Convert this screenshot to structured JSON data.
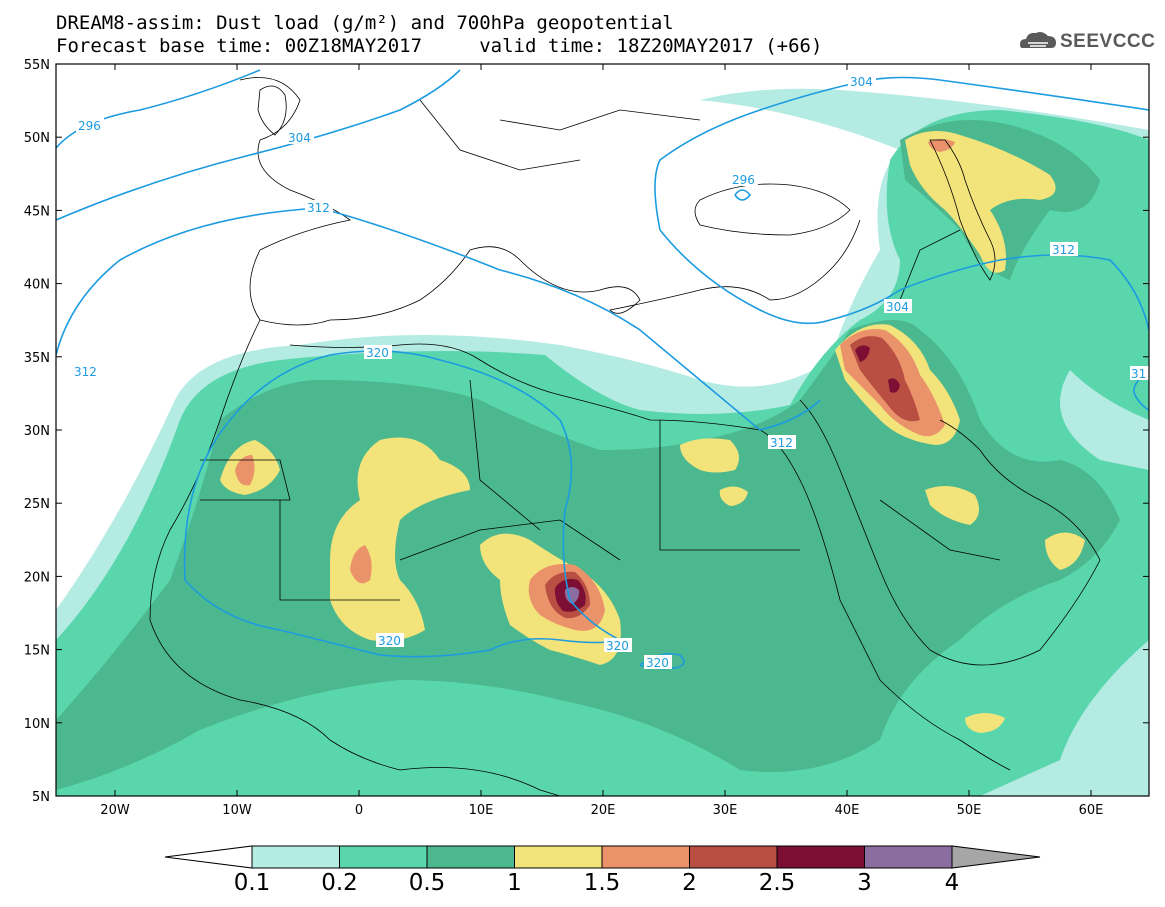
{
  "title_line1": "DREAM8-assim: Dust load (g/m²) and 700hPa geopotential",
  "title_line2": "Forecast base time: 00Z18MAY2017     valid time: 18Z20MAY2017 (+66)",
  "logo_text": "SEEVCCC",
  "lat_labels": [
    "55N",
    "50N",
    "45N",
    "40N",
    "35N",
    "30N",
    "25N",
    "20N",
    "15N",
    "10N",
    "5N"
  ],
  "lon_labels": [
    "20W",
    "10W",
    "0",
    "10E",
    "20E",
    "30E",
    "40E",
    "50E",
    "60E"
  ],
  "contour_labels": [
    "296",
    "304",
    "312",
    "312",
    "320",
    "320",
    "320",
    "320",
    "296",
    "304",
    "304",
    "312",
    "312",
    "31"
  ],
  "colorbar": {
    "labels": [
      "0.1",
      "0.2",
      "0.5",
      "1",
      "1.5",
      "2",
      "2.5",
      "3",
      "4"
    ],
    "colors": [
      "#b4ebe3",
      "#5ad6ad",
      "#4cb88f",
      "#f2e37a",
      "#ea926a",
      "#b94f42",
      "#7c0f33",
      "#8c6da0"
    ],
    "under_color": "#ffffff",
    "over_color": "#a6a6a6"
  },
  "colors": {
    "contour": "#1c9be0",
    "border": "#000000",
    "dust_0_1": "#b4ebe3",
    "dust_0_2": "#5ad6ad",
    "dust_0_5": "#4cb88f",
    "dust_1": "#f2e37a",
    "dust_1_5": "#ea926a",
    "dust_2": "#b94f42",
    "dust_2_5": "#7c0f33",
    "dust_3": "#8c6da0"
  }
}
